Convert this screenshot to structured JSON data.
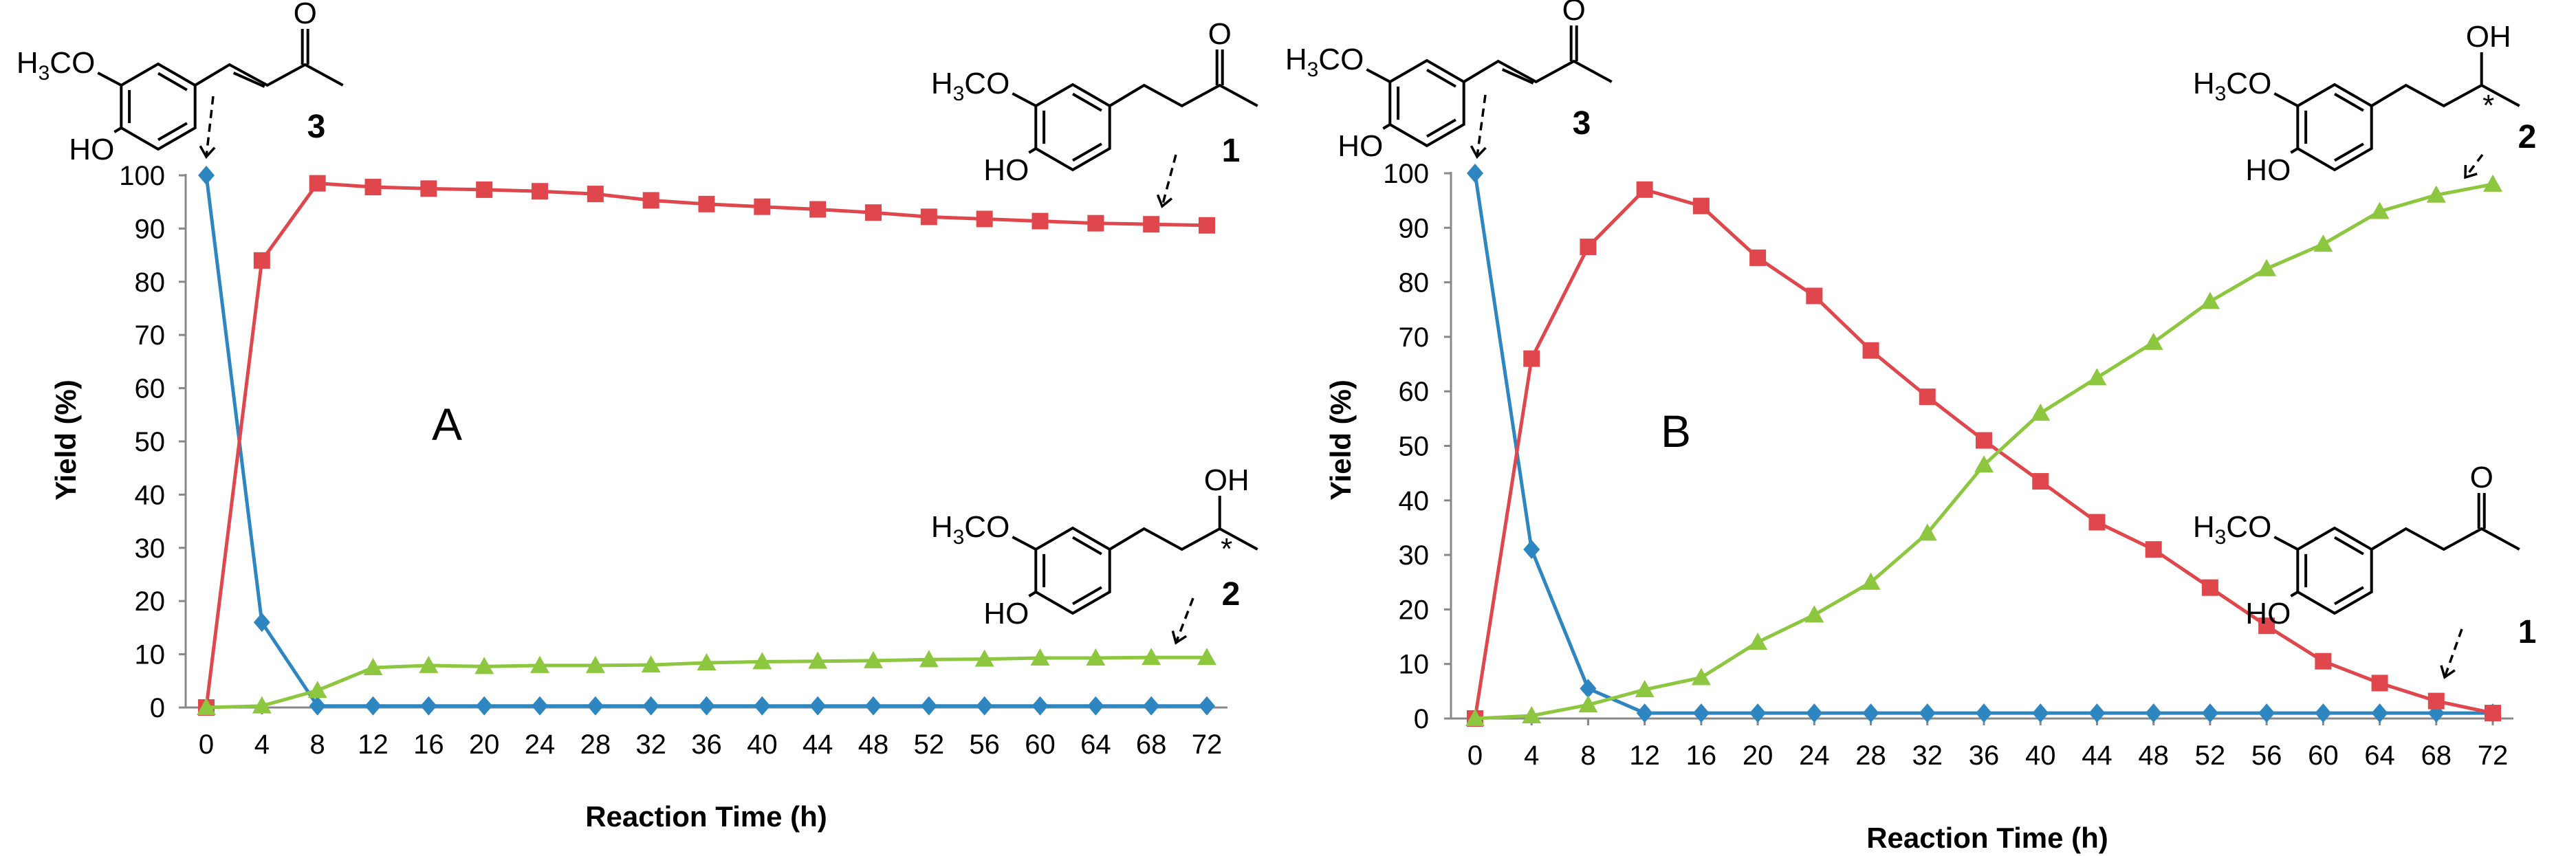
{
  "chart_data": [
    {
      "panel": "A",
      "type": "line",
      "title": "",
      "xlabel": "Reaction Time (h)",
      "ylabel": "Yield (%)",
      "ylim": [
        0,
        100
      ],
      "yticks": [
        "0",
        "10",
        "20",
        "30",
        "40",
        "50",
        "60",
        "70",
        "80",
        "90",
        "100"
      ],
      "categories": [
        "0",
        "4",
        "8",
        "12",
        "16",
        "20",
        "24",
        "28",
        "32",
        "36",
        "40",
        "44",
        "48",
        "52",
        "56",
        "60",
        "64",
        "68",
        "72"
      ],
      "grid": false,
      "series": [
        {
          "compound": "3",
          "color": "#2e86c1",
          "marker": "diamond",
          "values": [
            100,
            16,
            0.3,
            0.3,
            0.3,
            0.3,
            0.3,
            0.3,
            0.3,
            0.3,
            0.3,
            0.3,
            0.3,
            0.3,
            0.3,
            0.3,
            0.3,
            0.3,
            0.3
          ]
        },
        {
          "compound": "1",
          "color": "#e0474c",
          "marker": "square",
          "values": [
            0,
            84,
            98.5,
            97.8,
            97.5,
            97.3,
            97.0,
            96.5,
            95.3,
            94.6,
            94.1,
            93.6,
            93.0,
            92.2,
            91.8,
            91.4,
            91.0,
            90.8,
            90.6
          ]
        },
        {
          "compound": "2",
          "color": "#8dc63f",
          "marker": "triangle",
          "values": [
            0,
            0.3,
            3.2,
            7.5,
            7.9,
            7.7,
            7.9,
            7.9,
            8.0,
            8.4,
            8.6,
            8.7,
            8.8,
            9.0,
            9.1,
            9.3,
            9.3,
            9.4,
            9.4
          ]
        }
      ]
    },
    {
      "panel": "B",
      "type": "line",
      "title": "",
      "xlabel": "Reaction Time (h)",
      "ylabel": "Yield (%)",
      "ylim": [
        0,
        100
      ],
      "yticks": [
        "0",
        "10",
        "20",
        "30",
        "40",
        "50",
        "60",
        "70",
        "80",
        "90",
        "100"
      ],
      "categories": [
        "0",
        "4",
        "8",
        "12",
        "16",
        "20",
        "24",
        "28",
        "32",
        "36",
        "40",
        "44",
        "48",
        "52",
        "56",
        "60",
        "64",
        "68",
        "72"
      ],
      "grid": false,
      "series": [
        {
          "compound": "3",
          "color": "#2e86c1",
          "marker": "diamond",
          "values": [
            100,
            31,
            5.5,
            1,
            1,
            1,
            1,
            1,
            1,
            1,
            1,
            1,
            1,
            1,
            1,
            1,
            1,
            1,
            1
          ]
        },
        {
          "compound": "1",
          "color": "#e0474c",
          "marker": "square",
          "values": [
            0,
            66,
            86.5,
            97,
            94,
            84.5,
            77.5,
            67.5,
            59,
            51,
            43.5,
            36,
            31,
            24,
            17,
            10.5,
            6.5,
            3.2,
            1
          ]
        },
        {
          "compound": "2",
          "color": "#8dc63f",
          "marker": "triangle",
          "values": [
            0,
            0.5,
            2.5,
            5.3,
            7.5,
            14,
            19,
            25,
            34,
            46.5,
            56,
            62.5,
            69,
            76.5,
            82.5,
            87,
            93,
            96,
            98
          ]
        }
      ]
    }
  ],
  "labels": {
    "methoxy": "H3CO",
    "hydroxy": "HO",
    "ketone_o": "O",
    "alcohol_oh": "OH",
    "stereo_mark": "*",
    "compound_1": "1",
    "compound_2": "2",
    "compound_3": "3"
  }
}
